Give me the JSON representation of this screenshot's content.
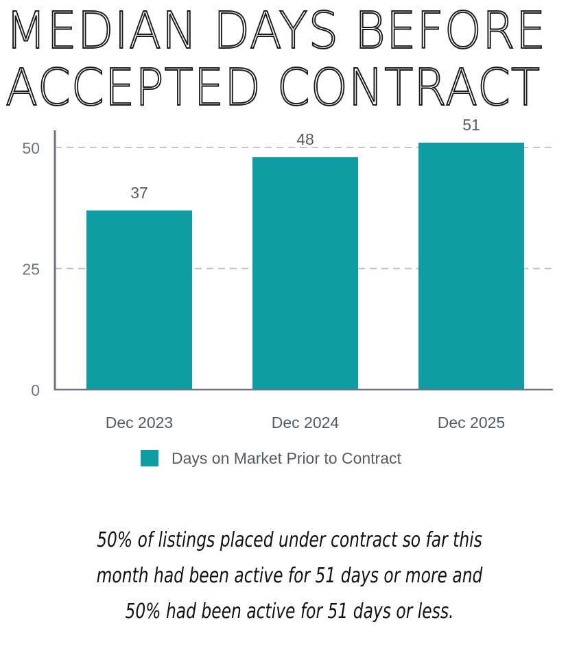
{
  "title_lines": [
    "MEDIAN DAYS BEFORE",
    "ACCEPTED CONTRACT"
  ],
  "chart_data": {
    "type": "bar",
    "title": "MEDIAN DAYS BEFORE ACCEPTED CONTRACT",
    "categories": [
      "Dec 2023",
      "Dec 2024",
      "Dec 2025"
    ],
    "series": [
      {
        "name": "Days on Market Prior to Contract",
        "values": [
          37,
          48,
          51
        ],
        "color": "#0f9ca2"
      }
    ],
    "ylim": [
      0,
      53.5
    ],
    "yticks": [
      0,
      25,
      50
    ],
    "grid": "dashed horizontal at 25 and 50",
    "legend": "bottom-center",
    "xlabel": "",
    "ylabel": ""
  },
  "note_lines": [
    "50% of listings placed under contract so far this",
    "month had been active for 51 days or more and",
    "50% had been active for 51 days or less."
  ]
}
